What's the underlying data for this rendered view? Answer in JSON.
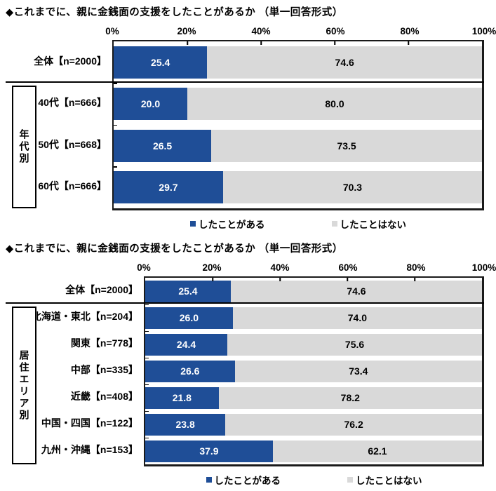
{
  "colors": {
    "yes": "#1F4E97",
    "no": "#D9D9D9",
    "value_on_yes": "#FFFFFF",
    "value_on_no": "#000000",
    "border": "#000000"
  },
  "legend": {
    "yes": "したことがある",
    "no": "したことはない"
  },
  "charts": [
    {
      "title": "◆これまでに、親に金銭面の支援をしたことがあるか （単一回答形式）",
      "axis_ticks": [
        "0%",
        "20%",
        "40%",
        "60%",
        "80%",
        "100%"
      ],
      "group_label": "年代別",
      "rows": [
        {
          "label": "全体【n=2000】",
          "yes": "25.4",
          "no": "74.6"
        },
        {
          "label": "40代【n=666】",
          "yes": "20.0",
          "no": "80.0"
        },
        {
          "label": "50代【n=668】",
          "yes": "26.5",
          "no": "73.5"
        },
        {
          "label": "60代【n=666】",
          "yes": "29.7",
          "no": "70.3"
        }
      ]
    },
    {
      "title": "◆これまでに、親に金銭面の支援をしたことがあるか （単一回答形式）",
      "axis_ticks": [
        "0%",
        "20%",
        "40%",
        "60%",
        "80%",
        "100%"
      ],
      "group_label": "居住エリア別",
      "rows": [
        {
          "label": "全体【n=2000】",
          "yes": "25.4",
          "no": "74.6"
        },
        {
          "label": "北海道・東北【n=204】",
          "yes": "26.0",
          "no": "74.0"
        },
        {
          "label": "関東【n=778】",
          "yes": "24.4",
          "no": "75.6"
        },
        {
          "label": "中部【n=335】",
          "yes": "26.6",
          "no": "73.4"
        },
        {
          "label": "近畿【n=408】",
          "yes": "21.8",
          "no": "78.2"
        },
        {
          "label": "中国・四国【n=122】",
          "yes": "23.8",
          "no": "76.2"
        },
        {
          "label": "九州・沖縄【n=153】",
          "yes": "37.9",
          "no": "62.1"
        }
      ]
    }
  ],
  "chart_data": [
    {
      "type": "bar",
      "orientation": "horizontal",
      "stacked": true,
      "title": "◆これまでに、親に金銭面の支援をしたことがあるか （単一回答形式）",
      "group_label": "年代別",
      "categories": [
        "全体【n=2000】",
        "40代【n=666】",
        "50代【n=668】",
        "60代【n=666】"
      ],
      "series": [
        {
          "name": "したことがある",
          "color": "#1F4E97",
          "values": [
            25.4,
            20.0,
            26.5,
            29.7
          ]
        },
        {
          "name": "したことはない",
          "color": "#D9D9D9",
          "values": [
            74.6,
            80.0,
            73.5,
            70.3
          ]
        }
      ],
      "xlim": [
        0,
        100
      ],
      "x_ticks": [
        "0%",
        "20%",
        "40%",
        "60%",
        "80%",
        "100%"
      ],
      "grid": false,
      "legend_position": "bottom",
      "data_labels": true
    },
    {
      "type": "bar",
      "orientation": "horizontal",
      "stacked": true,
      "title": "◆これまでに、親に金銭面の支援をしたことがあるか （単一回答形式）",
      "group_label": "居住エリア別",
      "categories": [
        "全体【n=2000】",
        "北海道・東北【n=204】",
        "関東【n=778】",
        "中部【n=335】",
        "近畿【n=408】",
        "中国・四国【n=122】",
        "九州・沖縄【n=153】"
      ],
      "series": [
        {
          "name": "したことがある",
          "color": "#1F4E97",
          "values": [
            25.4,
            26.0,
            24.4,
            26.6,
            21.8,
            23.8,
            37.9
          ]
        },
        {
          "name": "したことはない",
          "color": "#D9D9D9",
          "values": [
            74.6,
            74.0,
            75.6,
            73.4,
            78.2,
            76.2,
            62.1
          ]
        }
      ],
      "xlim": [
        0,
        100
      ],
      "x_ticks": [
        "0%",
        "20%",
        "40%",
        "60%",
        "80%",
        "100%"
      ],
      "grid": false,
      "legend_position": "bottom",
      "data_labels": true
    }
  ]
}
